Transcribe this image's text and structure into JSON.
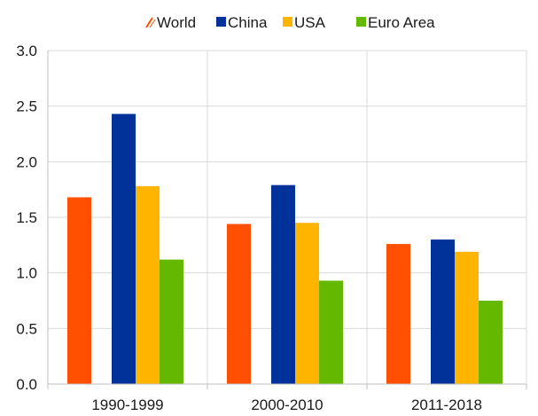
{
  "chart_data": {
    "type": "bar",
    "categories": [
      "1990-1999",
      "2000-2010",
      "2011-2018"
    ],
    "series": [
      {
        "name": "World",
        "color": "#FF4F00",
        "values": [
          1.68,
          1.44,
          1.26
        ]
      },
      {
        "name": "China",
        "color": "#003299",
        "values": [
          2.43,
          1.79,
          1.3
        ]
      },
      {
        "name": "USA",
        "color": "#FFB400",
        "values": [
          1.78,
          1.45,
          1.19
        ]
      },
      {
        "name": "Euro Area",
        "color": "#65B800",
        "values": [
          1.12,
          0.93,
          0.75
        ]
      }
    ],
    "ylim": [
      0,
      3.0
    ],
    "yticks": [
      "0.0",
      "0.5",
      "1.0",
      "1.5",
      "2.0",
      "2.5",
      "3.0"
    ],
    "grid": true,
    "legend_position": "top",
    "title": "",
    "xlabel": "",
    "ylabel": ""
  }
}
